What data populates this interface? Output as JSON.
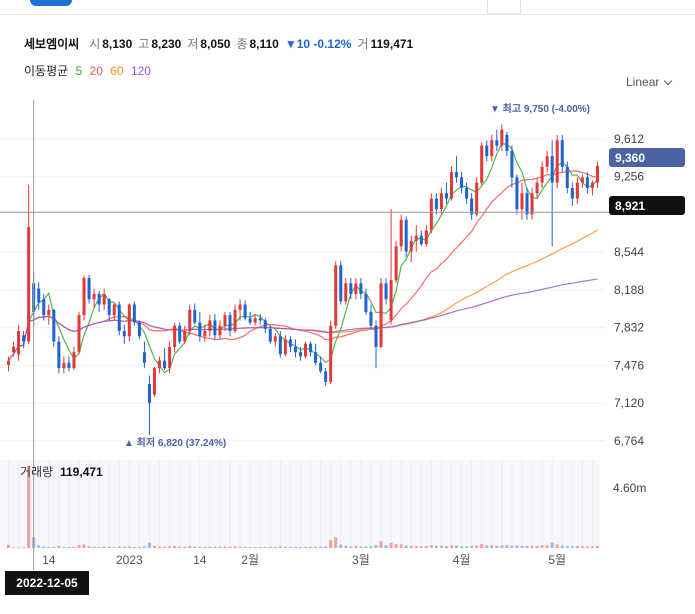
{
  "header": {
    "stock_name": "세보엠이씨",
    "open_label": "시",
    "open": "8,130",
    "high_label": "고",
    "high": "8,230",
    "low_label": "저",
    "low": "8,050",
    "close_label": "종",
    "close": "8,110",
    "change": "▼10 -0.12%",
    "volume_label": "거",
    "volume": "119,471"
  },
  "moving_average": {
    "label": "이동평균",
    "periods": [
      "5",
      "20",
      "60",
      "120"
    ],
    "colors": [
      "#33aa33",
      "#ee5555",
      "#ff8c2a",
      "#9a55dd"
    ]
  },
  "scale_selector": {
    "label": "Linear"
  },
  "crosshair_date": "2022-12-05",
  "colors": {
    "up": "#e03a3a",
    "down": "#1f64d0",
    "current_price_bg": "#4a63a5",
    "crosshair_bg": "#111111"
  },
  "chart_data": {
    "type": "candlestick",
    "y_ticks": [
      "9,612",
      "9,256",
      "8,544",
      "8,188",
      "7,832",
      "7,476",
      "7,120",
      "6,764"
    ],
    "ylim": [
      6630,
      9980
    ],
    "x_tick_labels": [
      "14",
      "2023",
      "14",
      "2월",
      "3월",
      "4월",
      "5월"
    ],
    "current_price": "9,360",
    "crosshair_price": "8,921",
    "high_annotation": "▼ 최고 9,750 (-4.00%)",
    "low_annotation": "▲ 최저 6,820 (37.24%)",
    "volume_label": "거래량",
    "volume_value": "119,471",
    "volume_tick": "4.60m",
    "candles": [
      [
        7480,
        7560,
        7420,
        7520
      ],
      [
        7600,
        7700,
        7560,
        7650
      ],
      [
        7580,
        7860,
        7520,
        7800
      ],
      [
        7760,
        7800,
        7640,
        7700
      ],
      [
        7700,
        9180,
        7680,
        8780
      ],
      [
        8250,
        8350,
        7850,
        7980
      ],
      [
        8200,
        8260,
        8000,
        8070
      ],
      [
        8100,
        8150,
        7900,
        7950
      ],
      [
        7950,
        8050,
        7860,
        8000
      ],
      [
        8000,
        8010,
        7650,
        7700
      ],
      [
        7700,
        7750,
        7400,
        7450
      ],
      [
        7450,
        7560,
        7400,
        7500
      ],
      [
        7500,
        7560,
        7420,
        7450
      ],
      [
        7450,
        7650,
        7430,
        7600
      ],
      [
        7600,
        7980,
        7580,
        7950
      ],
      [
        7950,
        8320,
        7900,
        8300
      ],
      [
        8300,
        8330,
        8060,
        8100
      ],
      [
        8100,
        8200,
        8020,
        8150
      ],
      [
        8150,
        8180,
        7980,
        8050
      ],
      [
        8050,
        8200,
        8000,
        8150
      ],
      [
        8100,
        8110,
        7900,
        7950
      ],
      [
        7950,
        8060,
        7900,
        8050
      ],
      [
        8050,
        8080,
        7760,
        7800
      ],
      [
        7800,
        7860,
        7680,
        7750
      ],
      [
        7750,
        8060,
        7700,
        8050
      ],
      [
        8050,
        8080,
        7850,
        7880
      ],
      [
        7880,
        7900,
        7720,
        7750
      ],
      [
        7600,
        7700,
        7450,
        7500
      ],
      [
        7300,
        7380,
        6820,
        7120
      ],
      [
        7200,
        7460,
        7180,
        7450
      ],
      [
        7450,
        7560,
        7400,
        7520
      ],
      [
        7520,
        7640,
        7430,
        7450
      ],
      [
        7450,
        7700,
        7400,
        7650
      ],
      [
        7650,
        7880,
        7600,
        7850
      ],
      [
        7850,
        7880,
        7680,
        7700
      ],
      [
        7700,
        7850,
        7680,
        7800
      ],
      [
        7800,
        8050,
        7760,
        8000
      ],
      [
        8000,
        8060,
        7860,
        7880
      ],
      [
        7880,
        7980,
        7700,
        7750
      ],
      [
        7750,
        7860,
        7700,
        7800
      ],
      [
        7800,
        7950,
        7750,
        7900
      ],
      [
        7900,
        7960,
        7720,
        7760
      ],
      [
        7760,
        7900,
        7720,
        7850
      ],
      [
        7850,
        7980,
        7800,
        7950
      ],
      [
        7950,
        7980,
        7750,
        7800
      ],
      [
        7800,
        8050,
        7780,
        8000
      ],
      [
        8000,
        8100,
        7900,
        8050
      ],
      [
        8050,
        8090,
        7900,
        7920
      ],
      [
        7920,
        7980,
        7860,
        7880
      ],
      [
        7880,
        7960,
        7850,
        7920
      ],
      [
        7920,
        7960,
        7860,
        7900
      ],
      [
        7900,
        7920,
        7780,
        7820
      ],
      [
        7820,
        7850,
        7680,
        7700
      ],
      [
        7700,
        7780,
        7650,
        7750
      ],
      [
        7750,
        7800,
        7550,
        7580
      ],
      [
        7580,
        7760,
        7560,
        7720
      ],
      [
        7720,
        7750,
        7600,
        7650
      ],
      [
        7650,
        7720,
        7550,
        7600
      ],
      [
        7600,
        7650,
        7520,
        7560
      ],
      [
        7560,
        7700,
        7540,
        7680
      ],
      [
        7680,
        7700,
        7560,
        7600
      ],
      [
        7600,
        7680,
        7480,
        7500
      ],
      [
        7500,
        7560,
        7400,
        7420
      ],
      [
        7420,
        7450,
        7280,
        7320
      ],
      [
        7320,
        7900,
        7300,
        7850
      ],
      [
        7850,
        8460,
        7820,
        8420
      ],
      [
        8420,
        8460,
        8050,
        8080
      ],
      [
        8080,
        8300,
        8050,
        8250
      ],
      [
        8250,
        8300,
        8100,
        8150
      ],
      [
        8150,
        8300,
        8100,
        8250
      ],
      [
        8250,
        8300,
        8100,
        8150
      ],
      [
        8150,
        8200,
        7950,
        7980
      ],
      [
        7980,
        8050,
        7820,
        7850
      ],
      [
        7850,
        7900,
        7450,
        7650
      ],
      [
        7650,
        8300,
        7640,
        8250
      ],
      [
        8250,
        8300,
        8050,
        8100
      ],
      [
        7900,
        8950,
        7860,
        8280
      ],
      [
        8280,
        8650,
        8250,
        8600
      ],
      [
        8600,
        8900,
        8550,
        8850
      ],
      [
        8850,
        8880,
        8500,
        8550
      ],
      [
        8550,
        8700,
        8450,
        8650
      ],
      [
        8650,
        8800,
        8550,
        8700
      ],
      [
        8700,
        8750,
        8600,
        8620
      ],
      [
        8620,
        8800,
        8600,
        8750
      ],
      [
        8750,
        9100,
        8720,
        9050
      ],
      [
        9050,
        9100,
        8900,
        8950
      ],
      [
        8950,
        9150,
        8900,
        9100
      ],
      [
        9100,
        9200,
        9000,
        9050
      ],
      [
        9050,
        9350,
        9030,
        9300
      ],
      [
        9300,
        9450,
        9200,
        9250
      ],
      [
        9250,
        9300,
        9100,
        9150
      ],
      [
        9150,
        9200,
        9000,
        9050
      ],
      [
        9050,
        9100,
        8850,
        8900
      ],
      [
        8900,
        9250,
        8880,
        9200
      ],
      [
        9200,
        9580,
        9180,
        9550
      ],
      [
        9550,
        9600,
        9400,
        9450
      ],
      [
        9450,
        9650,
        9400,
        9600
      ],
      [
        9600,
        9700,
        9500,
        9550
      ],
      [
        9550,
        9750,
        9500,
        9700
      ],
      [
        9650,
        9680,
        9450,
        9500
      ],
      [
        9500,
        9550,
        9150,
        9250
      ],
      [
        9250,
        9280,
        8900,
        8950
      ],
      [
        8950,
        9200,
        8850,
        9100
      ],
      [
        9100,
        9150,
        8850,
        8900
      ],
      [
        8900,
        9150,
        8850,
        9100
      ],
      [
        9100,
        9250,
        9050,
        9200
      ],
      [
        9200,
        9400,
        9150,
        9350
      ],
      [
        9350,
        9500,
        9300,
        9450
      ],
      [
        9450,
        9600,
        8600,
        9200
      ],
      [
        9200,
        9650,
        9150,
        9600
      ],
      [
        9600,
        9650,
        9300,
        9350
      ],
      [
        9350,
        9400,
        9100,
        9150
      ],
      [
        9150,
        9200,
        8980,
        9050
      ],
      [
        9050,
        9250,
        9000,
        9200
      ],
      [
        9200,
        9280,
        9150,
        9250
      ],
      [
        9250,
        9300,
        9100,
        9150
      ],
      [
        9150,
        9220,
        9080,
        9200
      ],
      [
        9200,
        9400,
        9150,
        9360
      ]
    ],
    "volume": [
      180,
      40,
      30,
      35,
      4600,
      600,
      150,
      80,
      60,
      70,
      120,
      60,
      50,
      60,
      160,
      200,
      90,
      70,
      60,
      80,
      70,
      60,
      90,
      70,
      90,
      70,
      60,
      90,
      300,
      120,
      80,
      70,
      90,
      110,
      70,
      80,
      110,
      80,
      70,
      60,
      80,
      70,
      70,
      90,
      70,
      90,
      80,
      60,
      50,
      60,
      50,
      60,
      70,
      60,
      80,
      70,
      60,
      60,
      50,
      60,
      60,
      70,
      80,
      90,
      450,
      600,
      200,
      120,
      90,
      120,
      90,
      90,
      100,
      160,
      400,
      150,
      300,
      220,
      200,
      140,
      120,
      110,
      90,
      110,
      160,
      120,
      130,
      100,
      150,
      140,
      100,
      90,
      110,
      140,
      230,
      140,
      150,
      120,
      150,
      160,
      140,
      150,
      120,
      110,
      130,
      120,
      150,
      150,
      300,
      200,
      130,
      110,
      100,
      110,
      90,
      90,
      90,
      120
    ]
  }
}
